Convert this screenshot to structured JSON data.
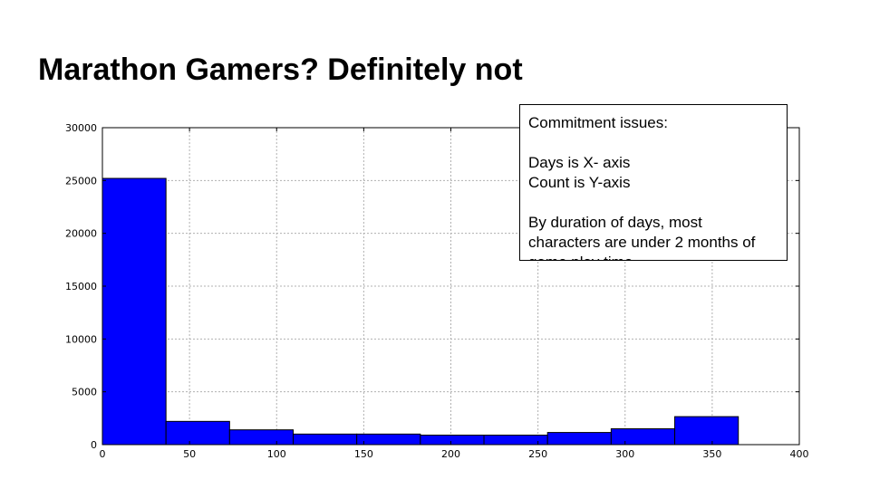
{
  "slide": {
    "title": "Marathon Gamers? Definitely not"
  },
  "note": {
    "lines": [
      "Commitment issues:",
      "",
      "Days is X- axis",
      "Count is Y-axis",
      "",
      "By duration of days, most",
      "characters are under 2 months of",
      "game play time"
    ]
  },
  "chart_data": {
    "type": "bar",
    "title": "",
    "xlabel": "",
    "ylabel": "",
    "bins": [
      {
        "x0": 0,
        "x1": 36.5,
        "count": 25200
      },
      {
        "x0": 36.5,
        "x1": 73,
        "count": 2200
      },
      {
        "x0": 73,
        "x1": 109.5,
        "count": 1400
      },
      {
        "x0": 109.5,
        "x1": 146,
        "count": 1000
      },
      {
        "x0": 146,
        "x1": 182.5,
        "count": 1000
      },
      {
        "x0": 182.5,
        "x1": 219,
        "count": 900
      },
      {
        "x0": 219,
        "x1": 255.5,
        "count": 900
      },
      {
        "x0": 255.5,
        "x1": 292,
        "count": 1150
      },
      {
        "x0": 292,
        "x1": 328.5,
        "count": 1500
      },
      {
        "x0": 328.5,
        "x1": 365,
        "count": 2650
      }
    ],
    "xlim": [
      0,
      400
    ],
    "ylim": [
      0,
      30000
    ],
    "xticks": [
      0,
      50,
      100,
      150,
      200,
      250,
      300,
      350,
      400
    ],
    "yticks": [
      0,
      5000,
      10000,
      15000,
      20000,
      25000,
      30000
    ],
    "grid": true,
    "bar_color": "#0000ff"
  }
}
